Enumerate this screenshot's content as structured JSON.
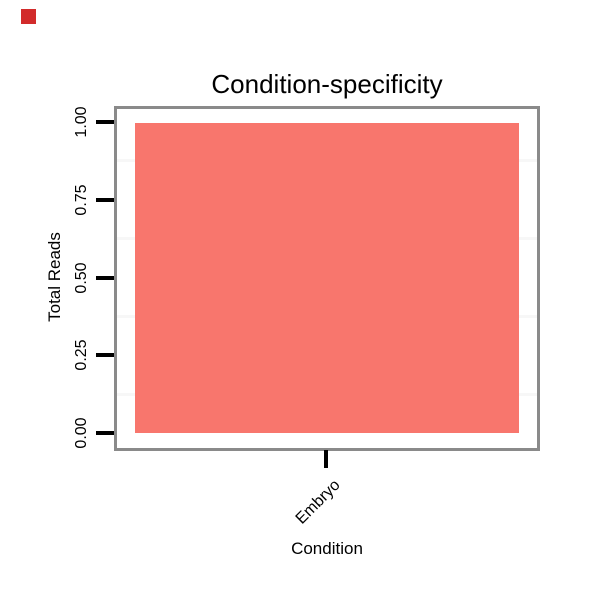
{
  "marker": {
    "color": "#d22b2b"
  },
  "chart_data": {
    "type": "bar",
    "title": "Condition-specificity",
    "xlabel": "Condition",
    "ylabel": "Total Reads",
    "categories": [
      "Embryo"
    ],
    "values": [
      1.0
    ],
    "ylim": [
      0,
      1
    ],
    "yticks": [
      "0.00",
      "0.25",
      "0.50",
      "0.75",
      "1.00"
    ],
    "minor_gridlines": [
      0.125,
      0.375,
      0.625,
      0.875
    ],
    "grid": "minor-only",
    "legend": "none",
    "bar_color": "#F8766D",
    "panel_border_color": "#8a8a8a",
    "gridline_color": "#f7f7f7",
    "tick_color": "#000000",
    "text_color": "#000000"
  }
}
